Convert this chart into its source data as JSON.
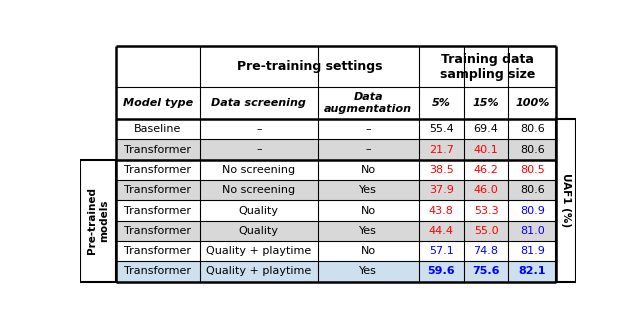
{
  "header_row1_col1": "Pre-training settings",
  "header_row1_col2": "Training data\nsampling size",
  "header_row2": [
    "Model type",
    "Data screening",
    "Data\naugmentation",
    "5%",
    "15%",
    "100%"
  ],
  "rows": [
    [
      "Baseline",
      "–",
      "–",
      "55.4",
      "69.4",
      "80.6"
    ],
    [
      "Transformer",
      "–",
      "–",
      "21.7",
      "40.1",
      "80.6"
    ],
    [
      "Transformer",
      "No screening",
      "No",
      "38.5",
      "46.2",
      "80.5"
    ],
    [
      "Transformer",
      "No screening",
      "Yes",
      "37.9",
      "46.0",
      "80.6"
    ],
    [
      "Transformer",
      "Quality",
      "No",
      "43.8",
      "53.3",
      "80.9"
    ],
    [
      "Transformer",
      "Quality",
      "Yes",
      "44.4",
      "55.0",
      "81.0"
    ],
    [
      "Transformer",
      "Quality + playtime",
      "No",
      "57.1",
      "74.8",
      "81.9"
    ],
    [
      "Transformer",
      "Quality + playtime",
      "Yes",
      "59.6",
      "75.6",
      "82.1"
    ]
  ],
  "cell_colors": {
    "0_3": "black",
    "0_4": "black",
    "0_5": "black",
    "1_3": "red",
    "1_4": "red",
    "1_5": "black",
    "2_3": "red",
    "2_4": "red",
    "2_5": "red",
    "3_3": "red",
    "3_4": "red",
    "3_5": "black",
    "4_3": "red",
    "4_4": "red",
    "4_5": "blue",
    "5_3": "red",
    "5_4": "red",
    "5_5": "blue",
    "6_3": "blue",
    "6_4": "blue",
    "6_5": "blue",
    "7_3": "blue",
    "7_4": "blue",
    "7_5": "blue"
  },
  "cell_bold": {
    "7_3": true,
    "7_4": true,
    "7_5": true
  },
  "alt_row_bg": "#d8d8d8",
  "last_row_bg": "#cce0f0",
  "figsize": [
    6.4,
    3.22
  ],
  "dpi": 100,
  "left_label": "Pre-trained\nmodels",
  "right_label": "UAF1 (%)",
  "col_widths_norm": [
    1.5,
    2.1,
    1.8,
    0.8,
    0.8,
    0.85
  ]
}
